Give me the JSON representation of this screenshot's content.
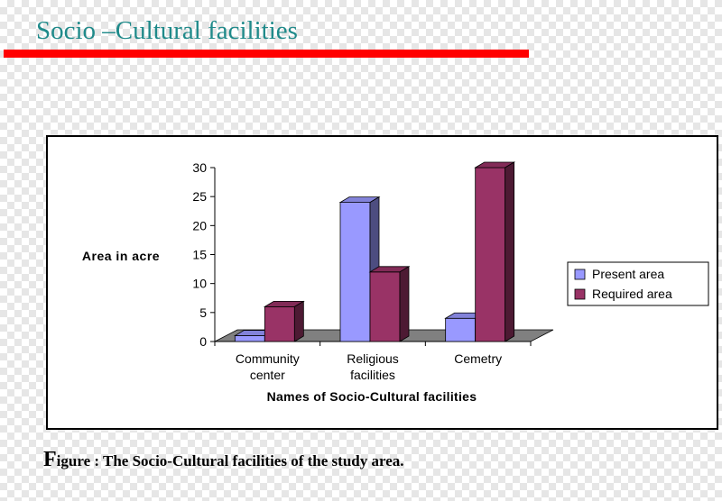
{
  "slide": {
    "title": "Socio –Cultural facilities",
    "caption_lead": "F",
    "caption_rest": "igure : The Socio-Cultural facilities  of the study area."
  },
  "colors": {
    "title": "#1f8a8a",
    "rule": "#ff0000",
    "present": "#9999ff",
    "required": "#993366"
  },
  "chart_data": {
    "type": "bar",
    "title": "",
    "xlabel": "Names of Socio-Cultural facilities",
    "ylabel": "Area in acre",
    "ylim": [
      0,
      30
    ],
    "yticks": [
      0,
      5,
      10,
      15,
      20,
      25,
      30
    ],
    "categories": [
      [
        "Community",
        "center"
      ],
      [
        "Religious",
        "facilities"
      ],
      [
        "Cemetry"
      ]
    ],
    "series": [
      {
        "name": "Present area",
        "values": [
          1,
          24,
          4
        ]
      },
      {
        "name": "Required area",
        "values": [
          6,
          12,
          30
        ]
      }
    ],
    "legend": "right",
    "grid": false
  }
}
